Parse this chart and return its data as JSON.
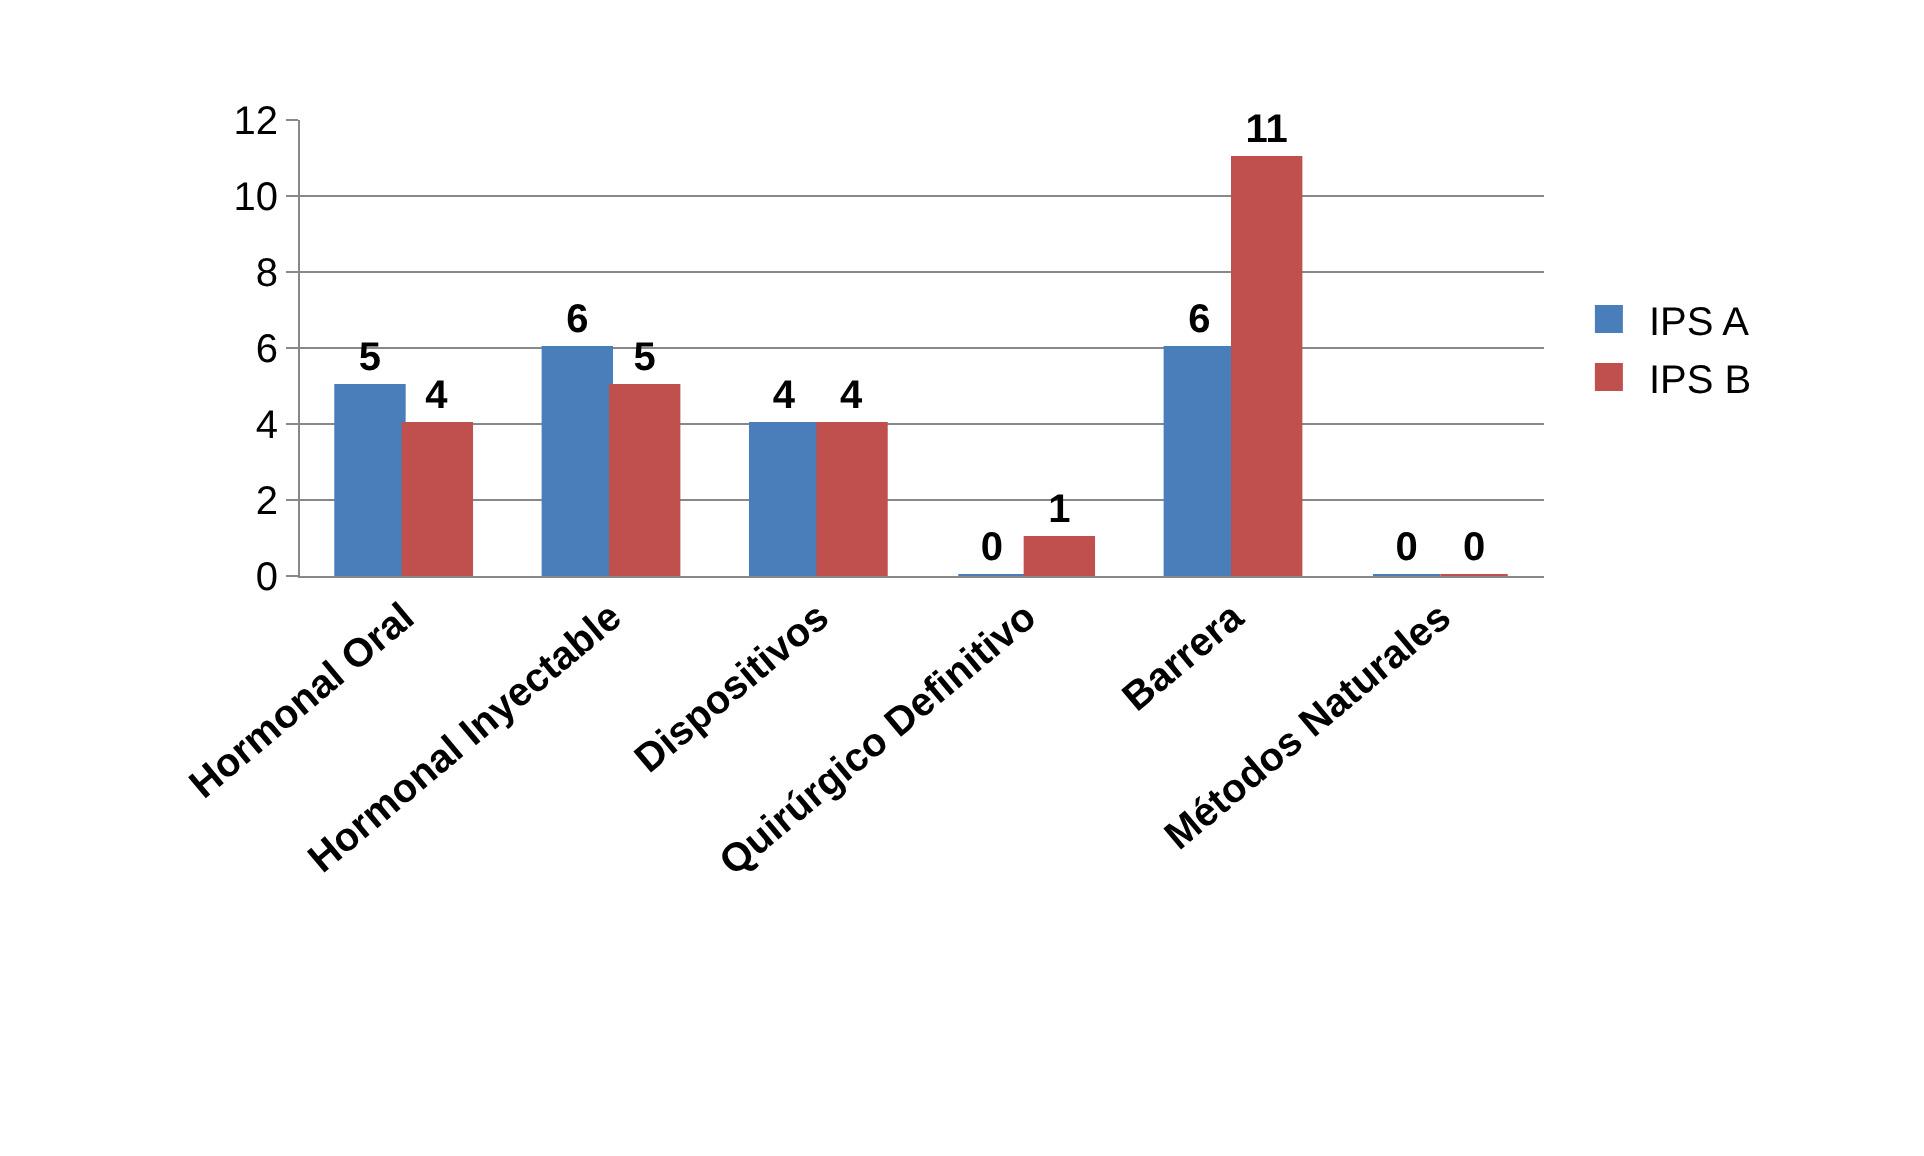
{
  "chart_data": {
    "type": "bar",
    "categories": [
      "Hormonal Oral",
      "Hormonal Inyectable",
      "Dispositivos",
      "Quirúrgico Definitivo",
      "Barrera",
      "Métodos Naturales"
    ],
    "series": [
      {
        "name": "IPS A",
        "color": "#4a7ebb",
        "values": [
          5,
          6,
          4,
          0,
          6,
          0
        ]
      },
      {
        "name": "IPS B",
        "color": "#c0504d",
        "values": [
          4,
          5,
          4,
          1,
          11,
          0
        ]
      }
    ],
    "ylim": [
      0,
      12
    ],
    "yticks": [
      0,
      2,
      4,
      6,
      8,
      10,
      12
    ],
    "grid": "y",
    "legend": "right",
    "data_labels": true
  }
}
